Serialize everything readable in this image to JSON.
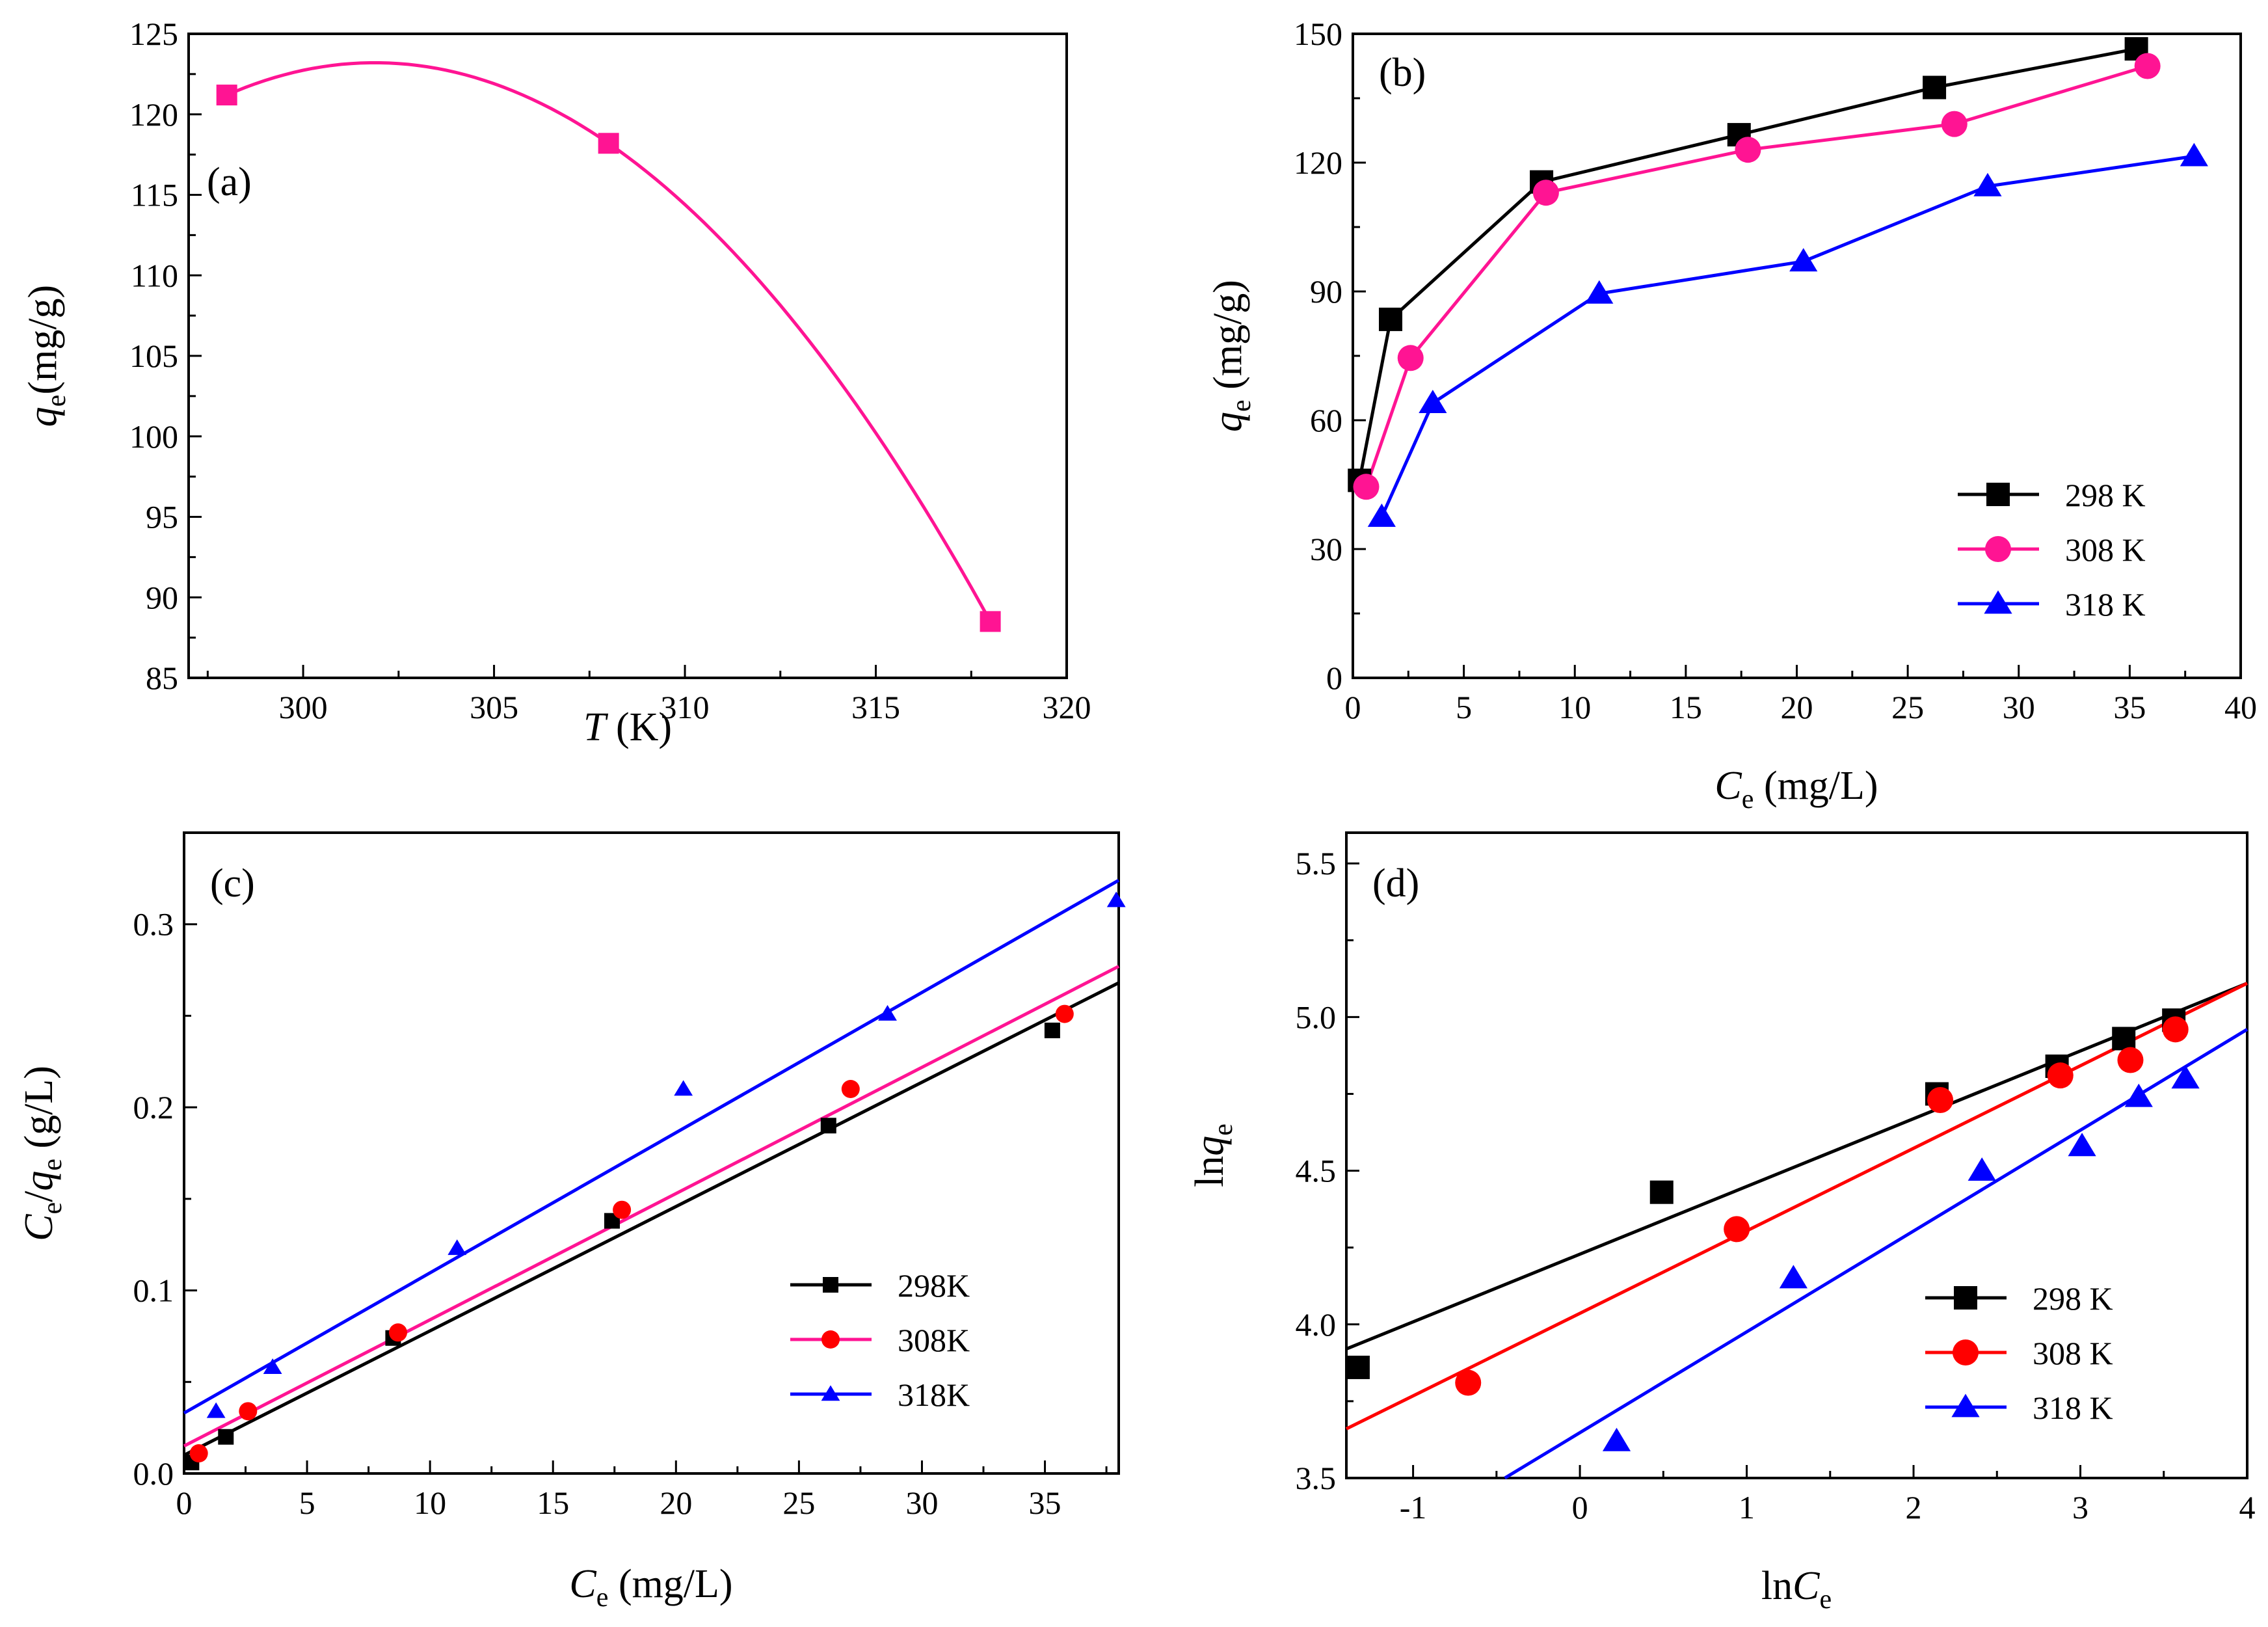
{
  "chart_data": [
    {
      "panel": "(a)",
      "type": "line",
      "xlabel": "T (K)",
      "ylabel": "qe (mg/g)",
      "xlim": [
        297,
        320
      ],
      "ylim": [
        85,
        125
      ],
      "xticks": [
        300,
        305,
        310,
        315,
        320
      ],
      "yticks": [
        85,
        90,
        95,
        100,
        105,
        110,
        115,
        120,
        125
      ],
      "series": [
        {
          "name": "qe",
          "color": "#ff1493",
          "marker": "square",
          "smooth": true,
          "x": [
            298,
            308,
            318
          ],
          "y": [
            121.2,
            118.2,
            88.5
          ]
        }
      ]
    },
    {
      "panel": "(b)",
      "type": "line",
      "xlabel": "Ce (mg/L)",
      "ylabel": "qe (mg/g)",
      "xlim": [
        0,
        40
      ],
      "ylim": [
        0,
        150
      ],
      "xticks": [
        0,
        5,
        10,
        15,
        20,
        25,
        30,
        35,
        40
      ],
      "yticks": [
        0,
        30,
        60,
        90,
        120,
        150
      ],
      "legend": "bottom-right",
      "series": [
        {
          "name": "298 K",
          "color": "#000000",
          "marker": "square",
          "x": [
            0.3,
            1.7,
            8.5,
            17.4,
            26.2,
            35.3
          ],
          "y": [
            46,
            83.5,
            115.5,
            126.5,
            137.5,
            146.5
          ]
        },
        {
          "name": "308 K",
          "color": "#ff1493",
          "marker": "circle",
          "x": [
            0.6,
            2.6,
            8.7,
            17.8,
            27.1,
            35.8
          ],
          "y": [
            44.5,
            74.5,
            113,
            123,
            129,
            142.5
          ]
        },
        {
          "name": "318 K",
          "color": "#0000ff",
          "marker": "triangle",
          "x": [
            1.3,
            3.6,
            11.1,
            20.3,
            28.6,
            37.9
          ],
          "y": [
            37.5,
            64,
            89.5,
            97,
            114.5,
            121.5
          ]
        }
      ]
    },
    {
      "panel": "(c)",
      "type": "scatter",
      "xlabel": "Ce (mg/L)",
      "ylabel": "Ce/qe (g/L)",
      "xlim": [
        0,
        38
      ],
      "ylim": [
        0,
        0.35
      ],
      "xticks": [
        0,
        5,
        10,
        15,
        20,
        25,
        30,
        35
      ],
      "yticks": [
        0.0,
        0.1,
        0.2,
        0.3
      ],
      "legend": "right",
      "series": [
        {
          "name": "298K",
          "color": "#000000",
          "marker": "square",
          "x": [
            0.3,
            1.7,
            8.5,
            17.4,
            26.2,
            35.3
          ],
          "y": [
            0.006,
            0.02,
            0.074,
            0.138,
            0.19,
            0.242
          ],
          "fit": [
            [
              0,
              0.01
            ],
            [
              38,
              0.268
            ]
          ]
        },
        {
          "name": "308K",
          "color": "#ff0000",
          "marker": "circle",
          "x": [
            0.6,
            2.6,
            8.7,
            17.8,
            27.1,
            35.8
          ],
          "y": [
            0.011,
            0.034,
            0.077,
            0.144,
            0.21,
            0.251
          ],
          "fit": [
            [
              0,
              0.015
            ],
            [
              38,
              0.277
            ]
          ],
          "fit_color": "#ff1493"
        },
        {
          "name": "318K",
          "color": "#0000ff",
          "marker": "triangle",
          "x": [
            1.3,
            3.6,
            11.1,
            20.3,
            28.6,
            37.9
          ],
          "y": [
            0.034,
            0.058,
            0.123,
            0.21,
            0.251,
            0.313
          ],
          "fit": [
            [
              0,
              0.033
            ],
            [
              38,
              0.324
            ]
          ]
        }
      ]
    },
    {
      "panel": "(d)",
      "type": "scatter",
      "xlabel": "lnCe",
      "ylabel": "lnqe",
      "xlim": [
        -1.4,
        4
      ],
      "ylim": [
        3.5,
        5.6
      ],
      "xticks": [
        -1,
        0,
        1,
        2,
        3,
        4
      ],
      "yticks": [
        3.5,
        4.0,
        4.5,
        5.0,
        5.5
      ],
      "legend": "bottom-right",
      "series": [
        {
          "name": "298 K",
          "color": "#000000",
          "marker": "square",
          "x": [
            -1.33,
            0.49,
            2.14,
            2.86,
            3.26,
            3.56
          ],
          "y": [
            3.86,
            4.43,
            4.75,
            4.84,
            4.93,
            4.99
          ],
          "fit": [
            [
              -1.4,
              3.92
            ],
            [
              4,
              5.11
            ]
          ]
        },
        {
          "name": "308 K",
          "color": "#ff0000",
          "marker": "circle",
          "x": [
            -0.67,
            0.94,
            2.16,
            2.88,
            3.3,
            3.57
          ],
          "y": [
            3.81,
            4.31,
            4.73,
            4.81,
            4.86,
            4.96
          ],
          "fit": [
            [
              -1.4,
              3.66
            ],
            [
              4,
              5.11
            ]
          ]
        },
        {
          "name": "318 K",
          "color": "#0000ff",
          "marker": "triangle",
          "x": [
            0.22,
            1.28,
            2.41,
            3.01,
            3.35,
            3.63
          ],
          "y": [
            3.62,
            4.15,
            4.5,
            4.58,
            4.74,
            4.8
          ],
          "fit": [
            [
              -0.45,
              3.5
            ],
            [
              4,
              4.96
            ]
          ]
        }
      ]
    }
  ]
}
